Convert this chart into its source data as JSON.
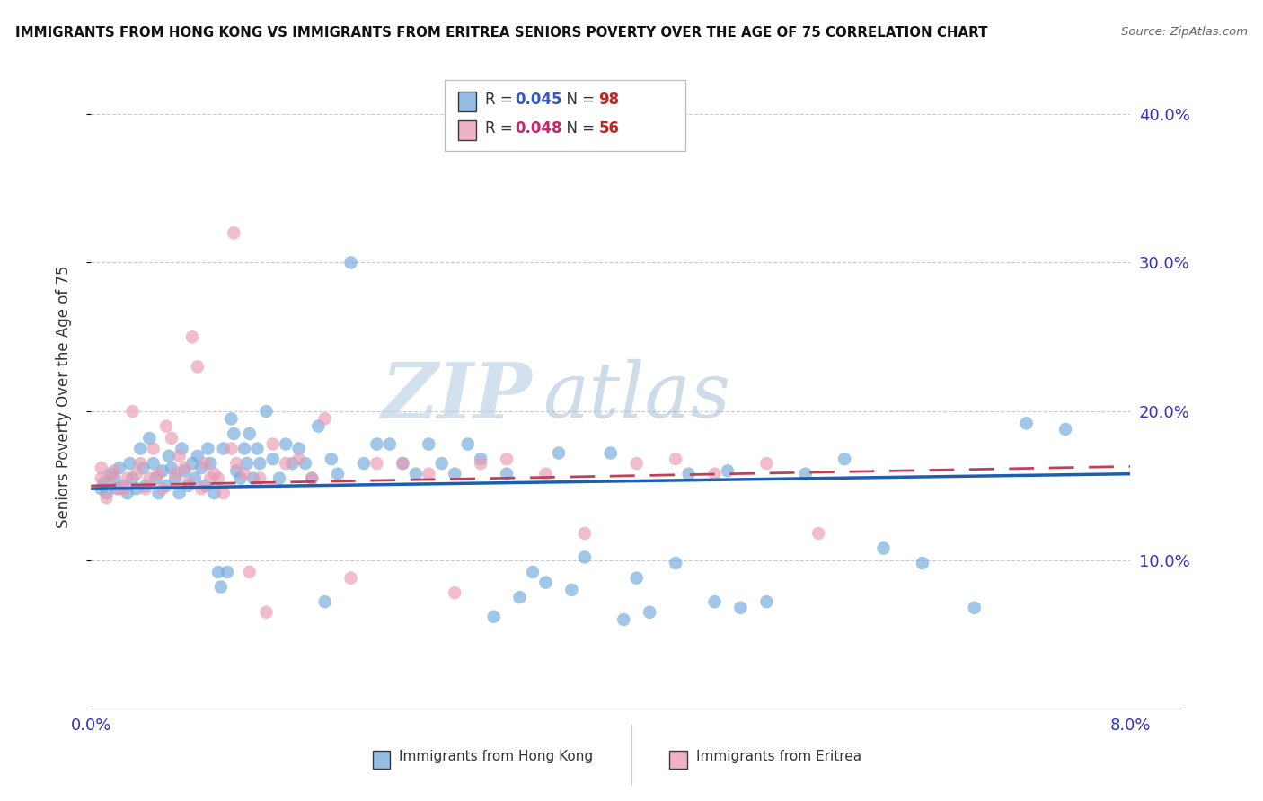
{
  "title": "IMMIGRANTS FROM HONG KONG VS IMMIGRANTS FROM ERITREA SENIORS POVERTY OVER THE AGE OF 75 CORRELATION CHART",
  "source": "Source: ZipAtlas.com",
  "ylabel": "Seniors Poverty Over the Age of 75",
  "xlim": [
    0.0,
    0.08
  ],
  "ylim": [
    0.0,
    0.42
  ],
  "yticks": [
    0.1,
    0.2,
    0.3,
    0.4
  ],
  "ytick_labels": [
    "10.0%",
    "20.0%",
    "30.0%",
    "40.0%"
  ],
  "xticks": [
    0.0,
    0.02,
    0.04,
    0.06,
    0.08
  ],
  "hk_color": "#6fa8dc",
  "er_color": "#ea9ab2",
  "hk_R": "0.045",
  "hk_N": "98",
  "er_R": "0.048",
  "er_N": "56",
  "legend_label_hk": "Immigrants from Hong Kong",
  "legend_label_er": "Immigrants from Eritrea",
  "watermark_zip": "ZIP",
  "watermark_atlas": "atlas",
  "trend_hk_y0": 0.148,
  "trend_hk_y1": 0.158,
  "trend_er_y0": 0.15,
  "trend_er_y1": 0.163,
  "hk_x": [
    0.0008,
    0.001,
    0.0012,
    0.0015,
    0.0018,
    0.002,
    0.0022,
    0.0025,
    0.0028,
    0.003,
    0.0032,
    0.0035,
    0.0038,
    0.004,
    0.0042,
    0.0045,
    0.0048,
    0.005,
    0.0052,
    0.0055,
    0.0058,
    0.006,
    0.0062,
    0.0065,
    0.0068,
    0.007,
    0.0072,
    0.0075,
    0.0078,
    0.008,
    0.0082,
    0.0085,
    0.0088,
    0.009,
    0.0092,
    0.0095,
    0.0098,
    0.01,
    0.0102,
    0.0105,
    0.0108,
    0.011,
    0.0112,
    0.0115,
    0.0118,
    0.012,
    0.0122,
    0.0125,
    0.0128,
    0.013,
    0.0135,
    0.014,
    0.0145,
    0.015,
    0.0155,
    0.016,
    0.0165,
    0.017,
    0.0175,
    0.018,
    0.0185,
    0.019,
    0.02,
    0.021,
    0.022,
    0.023,
    0.024,
    0.025,
    0.026,
    0.027,
    0.028,
    0.029,
    0.03,
    0.032,
    0.034,
    0.036,
    0.038,
    0.04,
    0.042,
    0.045,
    0.048,
    0.05,
    0.052,
    0.055,
    0.058,
    0.061,
    0.064,
    0.068,
    0.072,
    0.075,
    0.031,
    0.033,
    0.035,
    0.037,
    0.041,
    0.043,
    0.046,
    0.049
  ],
  "hk_y": [
    0.148,
    0.152,
    0.145,
    0.158,
    0.155,
    0.148,
    0.162,
    0.15,
    0.145,
    0.165,
    0.155,
    0.148,
    0.175,
    0.162,
    0.15,
    0.182,
    0.165,
    0.155,
    0.145,
    0.16,
    0.15,
    0.17,
    0.162,
    0.155,
    0.145,
    0.175,
    0.16,
    0.15,
    0.165,
    0.155,
    0.17,
    0.162,
    0.15,
    0.175,
    0.165,
    0.145,
    0.092,
    0.082,
    0.175,
    0.092,
    0.195,
    0.185,
    0.16,
    0.155,
    0.175,
    0.165,
    0.185,
    0.155,
    0.175,
    0.165,
    0.2,
    0.168,
    0.155,
    0.178,
    0.165,
    0.175,
    0.165,
    0.155,
    0.19,
    0.072,
    0.168,
    0.158,
    0.3,
    0.165,
    0.178,
    0.178,
    0.165,
    0.158,
    0.178,
    0.165,
    0.158,
    0.178,
    0.168,
    0.158,
    0.092,
    0.172,
    0.102,
    0.172,
    0.088,
    0.098,
    0.072,
    0.068,
    0.072,
    0.158,
    0.168,
    0.108,
    0.098,
    0.068,
    0.192,
    0.188,
    0.062,
    0.075,
    0.085,
    0.08,
    0.06,
    0.065,
    0.158,
    0.16
  ],
  "er_x": [
    0.0008,
    0.0012,
    0.0018,
    0.0022,
    0.0028,
    0.0032,
    0.0038,
    0.0042,
    0.0048,
    0.0052,
    0.0058,
    0.0062,
    0.0068,
    0.0072,
    0.0078,
    0.0082,
    0.0088,
    0.0092,
    0.0098,
    0.0102,
    0.0108,
    0.0112,
    0.0118,
    0.0122,
    0.013,
    0.014,
    0.015,
    0.016,
    0.017,
    0.018,
    0.02,
    0.022,
    0.024,
    0.026,
    0.028,
    0.03,
    0.032,
    0.035,
    0.038,
    0.042,
    0.045,
    0.048,
    0.052,
    0.056,
    0.0008,
    0.0015,
    0.0025,
    0.0035,
    0.0045,
    0.0055,
    0.0065,
    0.0075,
    0.0085,
    0.0095,
    0.011,
    0.0135
  ],
  "er_y": [
    0.155,
    0.142,
    0.16,
    0.148,
    0.155,
    0.2,
    0.165,
    0.148,
    0.175,
    0.158,
    0.19,
    0.182,
    0.17,
    0.162,
    0.25,
    0.23,
    0.165,
    0.155,
    0.155,
    0.145,
    0.175,
    0.165,
    0.158,
    0.092,
    0.155,
    0.178,
    0.165,
    0.168,
    0.155,
    0.195,
    0.088,
    0.165,
    0.165,
    0.158,
    0.078,
    0.165,
    0.168,
    0.158,
    0.118,
    0.165,
    0.168,
    0.158,
    0.165,
    0.118,
    0.162,
    0.155,
    0.148,
    0.158,
    0.155,
    0.148,
    0.158,
    0.152,
    0.148,
    0.158,
    0.32,
    0.065
  ]
}
